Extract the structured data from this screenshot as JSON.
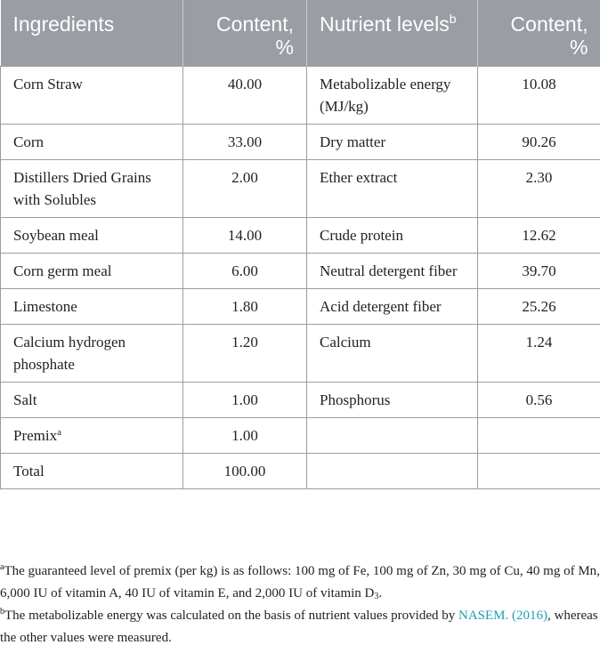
{
  "table": {
    "headers": {
      "ingredients": "Ingredients",
      "content1": "Content, %",
      "nutrient_levels": "Nutrient levels",
      "nutrient_levels_sup": "b",
      "content2": "Content, %"
    },
    "rows": [
      {
        "ingredient": "Corn Straw",
        "ingredient_content": "40.00",
        "nutrient": "Metabolizable energy (MJ/kg)",
        "nutrient_content": "10.08"
      },
      {
        "ingredient": "Corn",
        "ingredient_content": "33.00",
        "nutrient": "Dry matter",
        "nutrient_content": "90.26"
      },
      {
        "ingredient": "Distillers Dried Grains with Solubles",
        "ingredient_content": "2.00",
        "nutrient": "Ether extract",
        "nutrient_content": "2.30"
      },
      {
        "ingredient": "Soybean meal",
        "ingredient_content": "14.00",
        "nutrient": "Crude protein",
        "nutrient_content": "12.62"
      },
      {
        "ingredient": "Corn germ meal",
        "ingredient_content": "6.00",
        "nutrient": "Neutral detergent fiber",
        "nutrient_content": "39.70"
      },
      {
        "ingredient": "Limestone",
        "ingredient_content": "1.80",
        "nutrient": "Acid detergent fiber",
        "nutrient_content": "25.26"
      },
      {
        "ingredient": "Calcium hydrogen phosphate",
        "ingredient_content": "1.20",
        "nutrient": "Calcium",
        "nutrient_content": "1.24"
      },
      {
        "ingredient": "Salt",
        "ingredient_content": "1.00",
        "nutrient": "Phosphorus",
        "nutrient_content": "0.56"
      },
      {
        "ingredient": "Premix",
        "ingredient_sup": "a",
        "ingredient_content": "1.00",
        "nutrient": "",
        "nutrient_content": ""
      },
      {
        "ingredient": "Total",
        "ingredient_content": "100.00",
        "nutrient": "",
        "nutrient_content": ""
      }
    ]
  },
  "footnotes": {
    "a_marker": "a",
    "a_text": "The guaranteed level of premix (per kg) is as follows: 100 mg of Fe, 100 mg of Zn, 30 mg of Cu, 40 mg of Mn, 6,000 IU of vitamin A, 40 IU of vitamin E, and 2,000 IU of vitamin D",
    "a_sub": "3",
    "a_end": ".",
    "b_marker": "b",
    "b_text": "The metabolizable energy was calculated on the basis of nutrient values provided by ",
    "b_link": "NASEM. (2016)",
    "b_end": ", whereas the other values were measured."
  },
  "colors": {
    "header_bg": "#9a9da4",
    "header_text": "#ffffff",
    "border": "#9a9da4",
    "link": "#1a9fb5"
  }
}
